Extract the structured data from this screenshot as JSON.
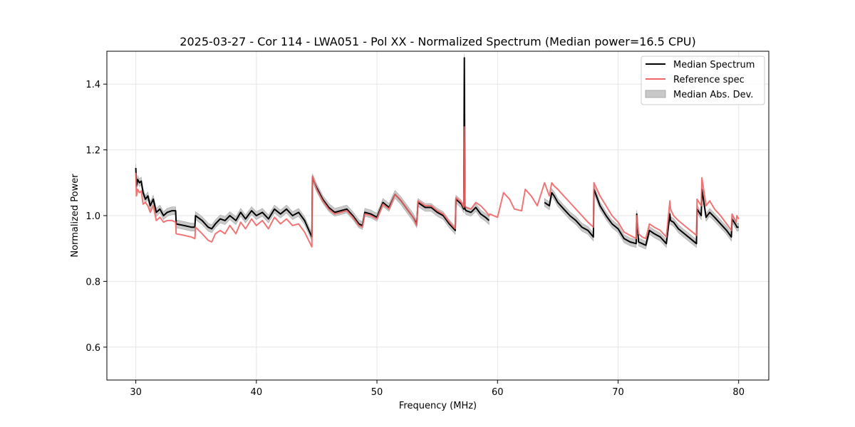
{
  "chart_data": {
    "type": "line",
    "title": "2025-03-27 - Cor 114 - LWA051 - Pol XX - Normalized Spectrum (Median power=16.5 CPU)",
    "xlabel": "Frequency (MHz)",
    "ylabel": "Normalized Power",
    "xlim": [
      27.6,
      82.5
    ],
    "ylim": [
      0.5,
      1.5
    ],
    "xticks": [
      30,
      40,
      50,
      60,
      70,
      80
    ],
    "yticks": [
      0.6,
      0.8,
      1.0,
      1.2,
      1.4
    ],
    "xtick_labels": [
      "30",
      "40",
      "50",
      "60",
      "70",
      "80"
    ],
    "ytick_labels": [
      "0.6",
      "0.8",
      "1.0",
      "1.2",
      "1.4"
    ],
    "grid": true,
    "legend_position": "top-right",
    "legend": [
      "Median Spectrum",
      "Reference spec",
      "Median Abs. Dev."
    ],
    "colors": {
      "median": "#000000",
      "reference": "#f06666",
      "mad": "#c8c8c8",
      "mad_edge": "#a8a8a8"
    },
    "series": [
      {
        "name": "Median Spectrum",
        "x": [
          30.0,
          30.05,
          30.15,
          30.3,
          30.45,
          30.6,
          30.8,
          31.0,
          31.2,
          31.45,
          31.7,
          32.0,
          32.3,
          32.6,
          33.0,
          33.3,
          33.35,
          34.0,
          34.6,
          34.9,
          34.95,
          35.5,
          36.0,
          36.3,
          36.6,
          37.0,
          37.4,
          37.8,
          38.3,
          38.7,
          39.1,
          39.6,
          40.0,
          40.5,
          41.0,
          41.5,
          42.0,
          42.5,
          43.0,
          43.5,
          44.0,
          44.6,
          44.65,
          45.0,
          45.5,
          46.0,
          46.5,
          47.0,
          47.5,
          48.0,
          48.5,
          48.8,
          49.0,
          49.5,
          50.0,
          50.5,
          51.0,
          51.5,
          52.0,
          52.5,
          53.0,
          53.3,
          53.4,
          54.0,
          54.5,
          55.0,
          55.5,
          56.0,
          56.5,
          56.55,
          57.0,
          57.2,
          57.25,
          57.3,
          57.4,
          57.8,
          58.2,
          58.6,
          59.0,
          59.3,
          null,
          63.9,
          64.1,
          64.3,
          64.5,
          64.7,
          65.0,
          65.5,
          66.0,
          66.5,
          67.0,
          67.5,
          67.95,
          68.0,
          68.5,
          69.0,
          69.5,
          70.0,
          70.5,
          71.0,
          71.5,
          71.55,
          71.7,
          72.0,
          72.3,
          72.6,
          73.0,
          73.5,
          74.0,
          74.3,
          74.35,
          74.6,
          75.0,
          75.5,
          76.0,
          76.5,
          76.55,
          76.9,
          76.95,
          77.3,
          77.6,
          78.0,
          78.5,
          79.0,
          79.4,
          79.45,
          79.8,
          79.85,
          80.0
        ],
        "values": [
          1.145,
          1.09,
          1.11,
          1.1,
          1.105,
          1.07,
          1.05,
          1.06,
          1.03,
          1.05,
          1.01,
          1.02,
          1.0,
          1.01,
          1.015,
          1.015,
          0.975,
          0.97,
          0.965,
          0.965,
          1.0,
          0.985,
          0.965,
          0.96,
          0.975,
          0.99,
          0.985,
          1.0,
          0.985,
          1.01,
          0.99,
          1.015,
          1.0,
          1.01,
          0.99,
          1.02,
          1.005,
          1.02,
          1.0,
          1.01,
          0.985,
          0.935,
          1.115,
          1.085,
          1.05,
          1.025,
          1.01,
          1.015,
          1.02,
          1.0,
          0.975,
          0.97,
          1.01,
          1.005,
          0.995,
          1.04,
          1.025,
          1.065,
          1.045,
          1.02,
          0.995,
          0.975,
          1.04,
          1.025,
          1.025,
          1.01,
          1.0,
          0.975,
          0.955,
          1.05,
          1.035,
          1.02,
          1.48,
          1.02,
          1.015,
          1.01,
          1.025,
          1.005,
          0.995,
          0.985,
          null,
          1.04,
          1.035,
          1.03,
          1.07,
          1.06,
          1.04,
          1.02,
          1.0,
          0.985,
          0.965,
          0.955,
          0.935,
          1.08,
          1.03,
          1.0,
          0.975,
          0.96,
          0.93,
          0.92,
          0.915,
          1.005,
          0.92,
          0.915,
          0.91,
          0.955,
          0.945,
          0.935,
          0.915,
          1.005,
          0.985,
          0.98,
          0.96,
          0.945,
          0.93,
          0.915,
          1.02,
          1.0,
          1.08,
          0.995,
          1.01,
          0.995,
          0.975,
          0.955,
          0.935,
          0.99,
          0.97,
          0.965,
          0.965
        ],
        "spread": 0.012
      },
      {
        "name": "Reference spec",
        "x": [
          30.0,
          30.05,
          30.15,
          30.3,
          30.45,
          30.6,
          30.8,
          31.0,
          31.2,
          31.45,
          31.7,
          32.0,
          32.3,
          32.6,
          33.0,
          33.3,
          33.35,
          34.0,
          34.6,
          34.9,
          34.95,
          35.5,
          36.0,
          36.3,
          36.6,
          37.0,
          37.4,
          37.8,
          38.3,
          38.7,
          39.1,
          39.6,
          40.0,
          40.5,
          41.0,
          41.5,
          42.0,
          42.5,
          43.0,
          43.5,
          44.0,
          44.6,
          44.65,
          45.0,
          45.5,
          46.0,
          46.5,
          47.0,
          47.5,
          48.0,
          48.5,
          48.8,
          49.0,
          49.5,
          50.0,
          50.5,
          51.0,
          51.5,
          52.0,
          52.5,
          53.0,
          53.3,
          53.4,
          54.0,
          54.5,
          55.0,
          55.5,
          56.0,
          56.5,
          56.55,
          57.0,
          57.2,
          57.25,
          57.3,
          57.4,
          57.8,
          58.2,
          58.6,
          59.0,
          59.3,
          59.35,
          60.0,
          60.5,
          61.0,
          61.4,
          62.0,
          62.3,
          62.8,
          63.3,
          63.9,
          64.1,
          64.3,
          64.5,
          64.7,
          65.0,
          65.5,
          66.0,
          66.5,
          67.0,
          67.5,
          67.95,
          68.0,
          68.5,
          69.0,
          69.5,
          70.0,
          70.5,
          71.0,
          71.5,
          71.55,
          71.7,
          72.0,
          72.3,
          72.6,
          73.0,
          73.5,
          74.0,
          74.3,
          74.35,
          74.6,
          75.0,
          75.5,
          76.0,
          76.5,
          76.55,
          76.9,
          76.95,
          77.3,
          77.6,
          78.0,
          78.5,
          79.0,
          79.4,
          79.45,
          79.8,
          79.85,
          80.0
        ],
        "values": [
          1.13,
          1.06,
          1.08,
          1.07,
          1.075,
          1.035,
          1.04,
          1.03,
          1.01,
          1.03,
          0.985,
          0.995,
          0.98,
          0.985,
          0.985,
          0.98,
          0.945,
          0.94,
          0.935,
          0.93,
          0.965,
          0.945,
          0.925,
          0.92,
          0.945,
          0.955,
          0.945,
          0.97,
          0.945,
          0.98,
          0.96,
          0.99,
          0.97,
          0.985,
          0.96,
          0.995,
          0.975,
          0.99,
          0.97,
          0.975,
          0.95,
          0.905,
          1.12,
          1.08,
          1.045,
          1.02,
          1.005,
          1.01,
          1.015,
          0.995,
          0.97,
          0.965,
          1.005,
          1.0,
          0.99,
          1.035,
          1.02,
          1.065,
          1.045,
          1.02,
          0.995,
          0.97,
          1.045,
          1.03,
          1.03,
          1.015,
          1.005,
          0.98,
          0.96,
          1.055,
          1.04,
          1.025,
          1.27,
          1.03,
          1.025,
          1.02,
          1.04,
          1.03,
          1.015,
          1.0,
          1.005,
          0.995,
          1.07,
          1.05,
          1.02,
          1.015,
          1.08,
          1.06,
          1.03,
          1.1,
          1.08,
          1.06,
          1.1,
          1.09,
          1.08,
          1.06,
          1.04,
          1.02,
          1.0,
          0.98,
          0.965,
          1.1,
          1.06,
          1.03,
          1.0,
          0.98,
          0.95,
          0.94,
          0.93,
          1.0,
          0.945,
          0.935,
          0.93,
          0.975,
          0.965,
          0.955,
          0.935,
          1.045,
          1.02,
          1.0,
          0.985,
          0.97,
          0.955,
          0.94,
          1.05,
          1.03,
          1.115,
          1.03,
          1.045,
          1.02,
          1.0,
          0.975,
          0.955,
          1.005,
          0.98,
          1.0,
          0.99
        ]
      }
    ]
  }
}
